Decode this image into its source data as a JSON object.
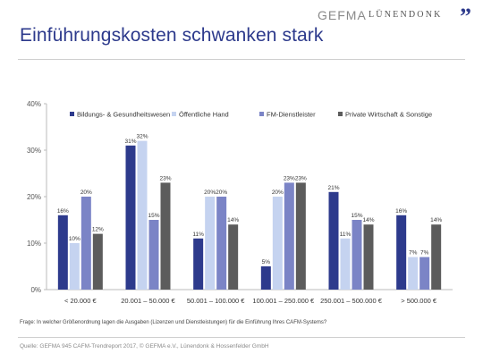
{
  "header": {
    "title": "Einführungskosten schwanken stark",
    "logo_gefma": "GEFMA",
    "logo_luenendonk": "LÜNENDONK",
    "logo_mark": "”"
  },
  "footer": {
    "question": "Frage: In welcher Größenordnung lagen die Ausgaben (Lizenzen und Dienstleistungen) für die Einführung Ihres CAFM-Systems?",
    "source": "Quelle: GEFMA 945 CAFM-Trendreport 2017, © GEFMA e.V., Lünendonk & Hossenfelder GmbH"
  },
  "chart_data": {
    "type": "bar",
    "title": "",
    "xlabel": "",
    "ylabel": "",
    "ylim": [
      0,
      40
    ],
    "yticks": [
      "0%",
      "10%",
      "20%",
      "30%",
      "40%"
    ],
    "grid": false,
    "legend_position": "top",
    "categories": [
      "< 20.000 €",
      "20.001 – 50.000 €",
      "50.001 – 100.000 €",
      "100.001 – 250.000 €",
      "250.001 – 500.000 €",
      "> 500.000 €"
    ],
    "series": [
      {
        "name": "Bildungs- & Gesundheitswesen",
        "color": "#2d3a8c",
        "values": [
          16,
          31,
          11,
          5,
          21,
          16
        ],
        "labels": [
          "16%",
          "31%",
          "11%",
          "5%",
          "21%",
          "16%"
        ]
      },
      {
        "name": "Öffentliche Hand",
        "color": "#c5d3f0",
        "values": [
          10,
          32,
          20,
          20,
          11,
          7
        ],
        "labels": [
          "10%",
          "32%",
          "20%",
          "20%",
          "11%",
          "7%"
        ]
      },
      {
        "name": "FM-Dienstleister",
        "color": "#7b84c6",
        "values": [
          20,
          15,
          20,
          23,
          15,
          7
        ],
        "labels": [
          "20%",
          "15%",
          "20%",
          "23%",
          "15%",
          "7%"
        ]
      },
      {
        "name": "Private Wirtschaft & Sonstige",
        "color": "#5c5c5c",
        "values": [
          12,
          23,
          14,
          23,
          14,
          14
        ],
        "labels": [
          "12%",
          "23%",
          "14%",
          "23%",
          "14%",
          "14%"
        ]
      }
    ]
  }
}
